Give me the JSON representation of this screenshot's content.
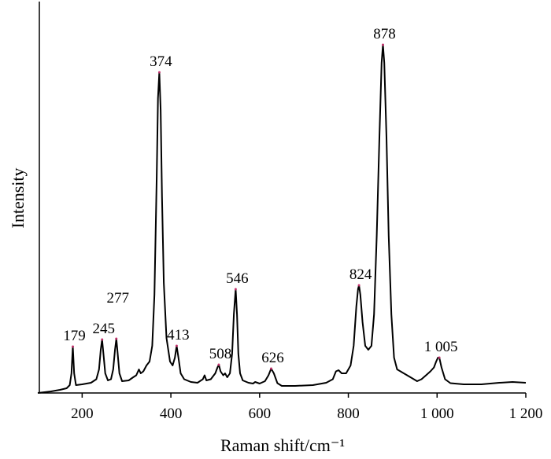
{
  "chart_data": {
    "type": "line",
    "xlabel": "Raman shift/cm⁻¹",
    "ylabel": "Intensity",
    "xlim": [
      100,
      1200
    ],
    "ylim": [
      0,
      100
    ],
    "xticks": [
      200,
      400,
      600,
      800,
      {
        "value": 1000,
        "label": "1 000"
      },
      {
        "value": 1200,
        "label": "1 200"
      }
    ],
    "series": [
      {
        "color": "#000000",
        "x": [
          100,
          130,
          150,
          165,
          172,
          176,
          179,
          182,
          186,
          200,
          220,
          232,
          238,
          242,
          245,
          248,
          252,
          258,
          265,
          270,
          274,
          277,
          280,
          284,
          290,
          305,
          315,
          322,
          328,
          332,
          338,
          345,
          352,
          358,
          363,
          368,
          371,
          374,
          377,
          380,
          384,
          390,
          398,
          404,
          409,
          413,
          417,
          422,
          430,
          445,
          460,
          472,
          476,
          480,
          490,
          500,
          505,
          508,
          512,
          518,
          522,
          527,
          533,
          538,
          542,
          546,
          549,
          552,
          556,
          562,
          575,
          585,
          590,
          600,
          612,
          620,
          626,
          632,
          640,
          650,
          680,
          720,
          750,
          765,
          772,
          778,
          785,
          795,
          805,
          812,
          818,
          822,
          824,
          827,
          832,
          838,
          845,
          852,
          858,
          864,
          870,
          875,
          878,
          881,
          886,
          891,
          897,
          903,
          910,
          925,
          940,
          955,
          965,
          975,
          985,
          993,
          998,
          1002,
          1005,
          1010,
          1018,
          1030,
          1060,
          1100,
          1140,
          1170,
          1200
        ],
        "values": [
          0,
          0.4,
          0.8,
          1.2,
          2,
          5,
          11.8,
          5,
          2,
          2.2,
          2.6,
          3.5,
          6,
          11,
          13.6,
          10,
          5,
          3.2,
          3.5,
          6,
          11,
          13.8,
          10,
          5,
          3,
          3.2,
          4,
          4.5,
          6,
          5,
          5.5,
          7,
          8,
          12,
          25,
          55,
          75,
          81.6,
          72,
          50,
          28,
          14,
          8,
          7,
          9,
          12,
          9,
          5,
          3.5,
          2.8,
          2.6,
          3.5,
          4.5,
          3.2,
          3.5,
          5,
          6.5,
          7.2,
          5.5,
          4.5,
          5,
          4,
          5,
          10,
          20,
          26.4,
          20,
          10,
          5,
          3.2,
          2.6,
          2.4,
          2.8,
          2.4,
          3,
          4.5,
          6.2,
          5,
          2.5,
          1.8,
          1.8,
          2,
          2.6,
          3.5,
          5.5,
          5.8,
          5,
          5,
          7,
          12,
          22,
          26.5,
          27.4,
          25,
          18,
          12,
          11,
          12,
          20,
          40,
          65,
          84,
          88.6,
          84,
          65,
          40,
          20,
          9,
          6,
          5,
          4,
          3,
          3.5,
          4.5,
          5.5,
          6.5,
          8,
          9,
          9,
          6.5,
          3.5,
          2.5,
          2.2,
          2.2,
          2.6,
          2.8,
          2.6
        ]
      }
    ],
    "annotations": [
      {
        "text": "179",
        "x": 179,
        "y": 11.8
      },
      {
        "text": "245",
        "x": 245,
        "y": 13.6
      },
      {
        "text": "277",
        "x": 277,
        "y": 13.8
      },
      {
        "text": "374",
        "x": 374,
        "y": 81.6
      },
      {
        "text": "413",
        "x": 413,
        "y": 12
      },
      {
        "text": "508",
        "x": 508,
        "y": 7.2
      },
      {
        "text": "546",
        "x": 546,
        "y": 26.4
      },
      {
        "text": "626",
        "x": 626,
        "y": 6.2
      },
      {
        "text": "824",
        "x": 824,
        "y": 27.4
      },
      {
        "text": "878",
        "x": 878,
        "y": 88.6
      },
      {
        "text": "1 005",
        "x": 1005,
        "y": 9
      }
    ]
  }
}
